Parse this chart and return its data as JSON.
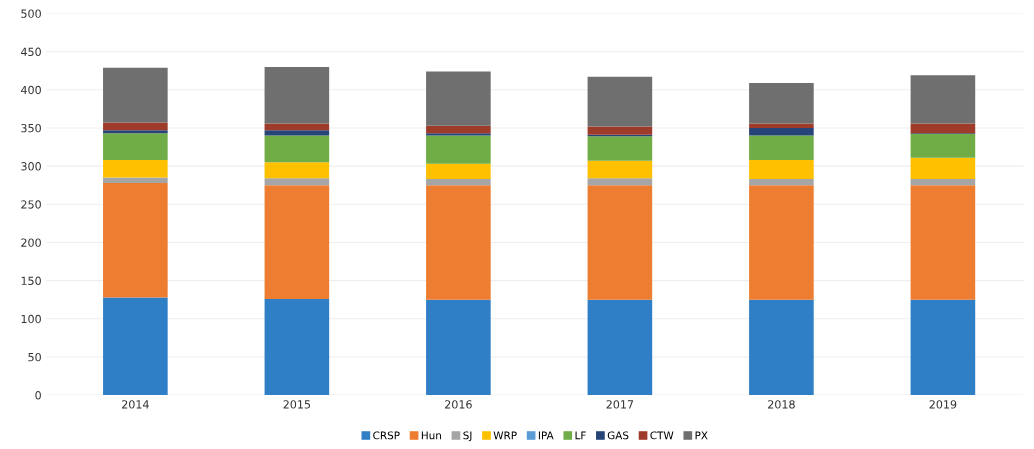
{
  "chart_data": {
    "type": "bar",
    "stacked": true,
    "categories": [
      "2014",
      "2015",
      "2016",
      "2017",
      "2018",
      "2019"
    ],
    "series": [
      {
        "name": "CRSP",
        "color": "#2e7fc6",
        "values": [
          128,
          126,
          125,
          125,
          125,
          125
        ]
      },
      {
        "name": "Hun",
        "color": "#ed7d31",
        "values": [
          150,
          149,
          150,
          150,
          150,
          150
        ]
      },
      {
        "name": "SJ",
        "color": "#a5a5a5",
        "values": [
          7,
          9,
          8,
          9,
          8,
          8
        ]
      },
      {
        "name": "WRP",
        "color": "#ffc000",
        "values": [
          23,
          21,
          20,
          23,
          25,
          28
        ]
      },
      {
        "name": "IPA",
        "color": "#5b9bd5",
        "values": [
          0,
          0,
          0,
          0,
          0,
          0
        ]
      },
      {
        "name": "LF",
        "color": "#70ad47",
        "values": [
          35,
          35,
          37,
          32,
          32,
          31
        ]
      },
      {
        "name": "GAS",
        "color": "#264478",
        "values": [
          4,
          7,
          3,
          2,
          10,
          1
        ]
      },
      {
        "name": "CTW",
        "color": "#9e3b2a",
        "values": [
          10,
          9,
          10,
          11,
          6,
          13
        ]
      },
      {
        "name": "PX",
        "color": "#6f6f6f",
        "values": [
          72,
          74,
          71,
          65,
          53,
          63
        ]
      }
    ],
    "ylim": [
      0,
      500
    ],
    "yticks": [
      0,
      50,
      100,
      150,
      200,
      250,
      300,
      350,
      400,
      450,
      500
    ],
    "grid": "y",
    "legend": "bottom"
  }
}
